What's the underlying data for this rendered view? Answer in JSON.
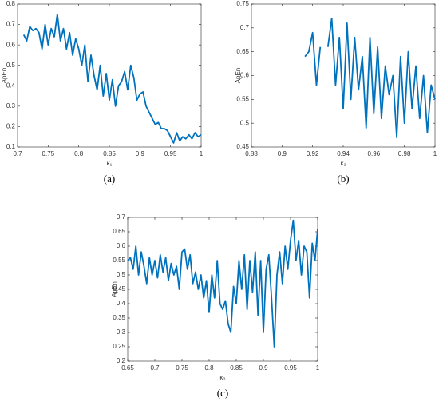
{
  "chart_data": [
    {
      "type": "line",
      "label": "(a)",
      "xlabel": "κ₁",
      "ylabel": "ApEn",
      "color": "#0072bd",
      "xlim": [
        0.7,
        1
      ],
      "xticks": [
        0.7,
        0.75,
        0.8,
        0.85,
        0.9,
        0.95,
        1
      ],
      "ylim": [
        0.1,
        0.8
      ],
      "yticks": [
        0.1,
        0.2,
        0.3,
        0.4,
        0.5,
        0.6,
        0.7,
        0.8
      ],
      "x": [
        0.71,
        0.715,
        0.72,
        0.725,
        0.73,
        0.735,
        0.74,
        0.745,
        0.75,
        0.755,
        0.76,
        0.765,
        0.77,
        0.775,
        0.78,
        0.785,
        0.79,
        0.795,
        0.8,
        0.805,
        0.81,
        0.815,
        0.82,
        0.825,
        0.83,
        0.835,
        0.84,
        0.845,
        0.85,
        0.855,
        0.86,
        0.865,
        0.87,
        0.875,
        0.88,
        0.885,
        0.89,
        0.895,
        0.9,
        0.905,
        0.91,
        0.915,
        0.92,
        0.925,
        0.93,
        0.935,
        0.94,
        0.945,
        0.95,
        0.955,
        0.96,
        0.965,
        0.97,
        0.975,
        0.98,
        0.985,
        0.99,
        0.995,
        1
      ],
      "values": [
        0.65,
        0.62,
        0.69,
        0.67,
        0.68,
        0.66,
        0.58,
        0.7,
        0.6,
        0.68,
        0.64,
        0.75,
        0.62,
        0.68,
        0.58,
        0.66,
        0.55,
        0.63,
        0.58,
        0.5,
        0.6,
        0.42,
        0.55,
        0.45,
        0.38,
        0.5,
        0.35,
        0.46,
        0.33,
        0.43,
        0.3,
        0.4,
        0.42,
        0.47,
        0.38,
        0.5,
        0.44,
        0.33,
        0.36,
        0.37,
        0.3,
        0.27,
        0.24,
        0.21,
        0.22,
        0.19,
        0.19,
        0.18,
        0.15,
        0.12,
        0.17,
        0.13,
        0.15,
        0.14,
        0.16,
        0.14,
        0.17,
        0.15,
        0.16
      ]
    },
    {
      "type": "line",
      "label": "(b)",
      "xlabel": "κ₂",
      "ylabel": "ApEn",
      "color": "#0072bd",
      "xlim": [
        0.88,
        1
      ],
      "xticks": [
        0.88,
        0.9,
        0.92,
        0.94,
        0.96,
        0.98,
        1
      ],
      "ylim": [
        0.45,
        0.75
      ],
      "yticks": [
        0.45,
        0.5,
        0.55,
        0.6,
        0.65,
        0.7,
        0.75
      ],
      "x": [
        0.915,
        0.9175,
        0.92,
        0.9225,
        0.925,
        0.9275,
        0.93,
        0.9325,
        0.935,
        0.9375,
        0.94,
        0.9425,
        0.945,
        0.9475,
        0.95,
        0.9525,
        0.955,
        0.9575,
        0.96,
        0.9625,
        0.965,
        0.9675,
        0.97,
        0.9725,
        0.975,
        0.9775,
        0.98,
        0.9825,
        0.985,
        0.9875,
        0.99,
        0.9925,
        0.995,
        0.9975,
        1
      ],
      "values": [
        0.64,
        0.65,
        0.69,
        0.58,
        0.66,
        null,
        0.66,
        0.72,
        0.58,
        0.68,
        0.53,
        0.71,
        0.55,
        0.68,
        0.57,
        0.64,
        0.49,
        0.68,
        0.52,
        0.66,
        0.51,
        0.62,
        0.56,
        0.6,
        0.47,
        0.64,
        0.5,
        0.65,
        0.53,
        0.62,
        0.51,
        0.6,
        0.48,
        0.58,
        0.55
      ]
    },
    {
      "type": "line",
      "label": "(c)",
      "xlabel": "κ₃",
      "ylabel": "ApEn",
      "color": "#0072bd",
      "xlim": [
        0.65,
        1
      ],
      "xticks": [
        0.65,
        0.7,
        0.75,
        0.8,
        0.85,
        0.9,
        0.95,
        1
      ],
      "ylim": [
        0.2,
        0.7
      ],
      "yticks": [
        0.2,
        0.25,
        0.3,
        0.35,
        0.4,
        0.45,
        0.5,
        0.55,
        0.6,
        0.65,
        0.7
      ],
      "x": [
        0.65,
        0.655,
        0.66,
        0.665,
        0.67,
        0.675,
        0.68,
        0.685,
        0.69,
        0.695,
        0.7,
        0.705,
        0.71,
        0.715,
        0.72,
        0.725,
        0.73,
        0.735,
        0.74,
        0.745,
        0.75,
        0.755,
        0.76,
        0.765,
        0.77,
        0.775,
        0.78,
        0.785,
        0.79,
        0.795,
        0.8,
        0.805,
        0.81,
        0.815,
        0.82,
        0.825,
        0.83,
        0.835,
        0.84,
        0.845,
        0.85,
        0.855,
        0.86,
        0.865,
        0.87,
        0.875,
        0.88,
        0.885,
        0.89,
        0.895,
        0.9,
        0.905,
        0.91,
        0.915,
        0.92,
        0.925,
        0.93,
        0.935,
        0.94,
        0.945,
        0.95,
        0.955,
        0.96,
        0.965,
        0.97,
        0.975,
        0.98,
        0.985,
        0.99,
        0.995,
        1
      ],
      "values": [
        0.55,
        0.56,
        0.52,
        0.6,
        0.5,
        0.58,
        0.53,
        0.47,
        0.56,
        0.5,
        0.55,
        0.49,
        0.57,
        0.51,
        0.56,
        0.48,
        0.54,
        0.5,
        0.53,
        0.45,
        0.58,
        0.59,
        0.52,
        0.57,
        0.47,
        0.51,
        0.45,
        0.5,
        0.42,
        0.48,
        0.37,
        0.5,
        0.42,
        0.55,
        0.4,
        0.38,
        0.41,
        0.33,
        0.3,
        0.46,
        0.4,
        0.55,
        0.45,
        0.57,
        0.38,
        0.55,
        0.44,
        0.58,
        0.36,
        0.55,
        0.3,
        0.52,
        0.57,
        0.42,
        0.25,
        0.5,
        0.58,
        0.47,
        0.6,
        0.52,
        0.62,
        0.69,
        0.55,
        0.62,
        0.5,
        0.6,
        0.58,
        0.42,
        0.61,
        0.55,
        0.66
      ]
    }
  ]
}
